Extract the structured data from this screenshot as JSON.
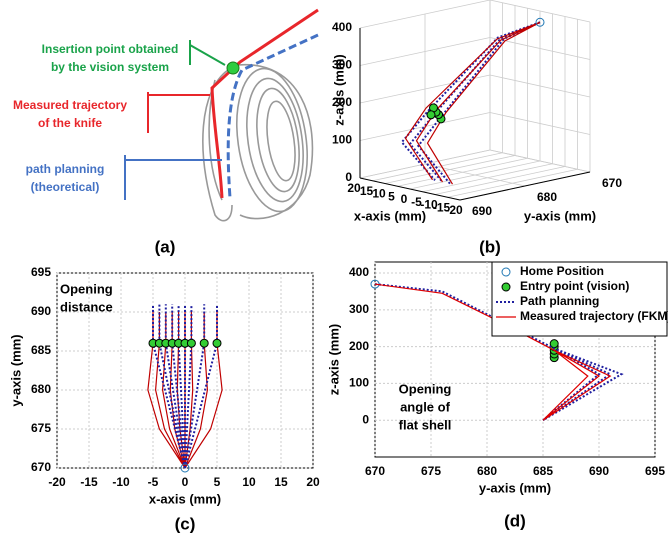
{
  "illustration": {
    "caption": "(a)",
    "labels": [
      {
        "lines": [
          "Insertion point obtained",
          "by the vision system"
        ]
      },
      {
        "lines": [
          "Measured trajectory",
          "of the knife"
        ]
      },
      {
        "lines": [
          "path planning",
          "(theoretical)"
        ]
      }
    ]
  },
  "chart_data": [
    {
      "type": "line3d",
      "caption": "(b)",
      "xlabel": "x-axis (mm)",
      "ylabel": "y-axis (mm)",
      "zlabel": "z-axis (mm)",
      "xlim": [
        -20,
        20
      ],
      "xticks": [
        20,
        15,
        10,
        5,
        0,
        -5,
        -10,
        -15,
        -20
      ],
      "ylim": [
        670,
        690
      ],
      "yticks": [
        690,
        680,
        670
      ],
      "zlim": [
        0,
        400
      ],
      "zticks": [
        0,
        100,
        200,
        300,
        400
      ],
      "grid": true,
      "series": [
        {
          "color": "#2020a0",
          "style": "dotted",
          "x": [
            0,
            -1.2,
            -3,
            -3.3,
            -3,
            null,
            0,
            0,
            0,
            0,
            0,
            null,
            0,
            1.2,
            3,
            3.3,
            3
          ],
          "y": [
            670,
            676,
            686,
            690,
            685,
            null,
            670,
            676,
            686,
            690,
            685,
            null,
            670,
            676,
            686,
            690,
            685
          ],
          "z": [
            370,
            350,
            190,
            120,
            0,
            null,
            370,
            350,
            190,
            120,
            0,
            null,
            370,
            350,
            190,
            120,
            0
          ]
        },
        {
          "color": "#c00000",
          "style": "line",
          "x": [
            0,
            -1.6,
            -4,
            -4.4,
            -4,
            null,
            0,
            0,
            0,
            0,
            0,
            null,
            0,
            1.6,
            4,
            4.4,
            4
          ],
          "y": [
            670,
            676,
            686,
            689,
            685,
            null,
            670,
            676,
            686,
            689,
            685,
            null,
            670,
            676,
            686,
            689,
            685
          ],
          "z": [
            370,
            345,
            195,
            125,
            0,
            null,
            370,
            345,
            195,
            125,
            0,
            null,
            370,
            345,
            195,
            125,
            0
          ]
        },
        {
          "color": "#1f77b4",
          "style": "marker",
          "facecolor": "none",
          "x": [
            0
          ],
          "y": [
            670
          ],
          "z": [
            370
          ]
        },
        {
          "color": "#000000",
          "style": "marker",
          "facecolor": "#33cc33",
          "x": [
            -2,
            -1,
            0,
            1,
            2
          ],
          "y": [
            686,
            686,
            686,
            686,
            686
          ],
          "z": [
            175,
            185,
            190,
            200,
            180
          ]
        }
      ]
    },
    {
      "type": "line",
      "caption": "(c)",
      "xlabel": "x-axis (mm)",
      "ylabel": "y-axis (mm)",
      "xlim": [
        -20,
        20
      ],
      "xticks": [
        -20,
        -15,
        -10,
        -5,
        0,
        5,
        10,
        15,
        20
      ],
      "ylim": [
        670,
        695
      ],
      "yticks": [
        670,
        675,
        680,
        685,
        690,
        695
      ],
      "grid": true,
      "annotation": [
        "Opening",
        "distance"
      ],
      "series": [
        {
          "color": "#c00000",
          "style": "line",
          "x": [
            0,
            -4,
            -5.8,
            -5,
            -5,
            null,
            0,
            -3.2,
            -4.6,
            -4,
            -4,
            null,
            0,
            -2.4,
            -3.5,
            -3,
            -3,
            null,
            0,
            -1.6,
            -2.3,
            -2,
            -2,
            null,
            0,
            -0.8,
            -1.2,
            -1,
            -1,
            null,
            0,
            0,
            0,
            0,
            0,
            null,
            0,
            0.8,
            1.2,
            1,
            1,
            null,
            0,
            2.4,
            3.5,
            3,
            3,
            null,
            0,
            4,
            5.8,
            5,
            5
          ],
          "values": [
            670,
            675,
            680,
            686,
            690,
            null,
            670,
            675,
            680,
            686,
            690,
            null,
            670,
            675,
            680,
            686,
            690,
            null,
            670,
            675,
            680,
            686,
            690,
            null,
            670,
            675,
            680,
            686,
            690,
            null,
            670,
            675,
            680,
            686,
            690,
            null,
            670,
            675,
            680,
            686,
            690,
            null,
            670,
            675,
            680,
            686,
            690,
            null,
            670,
            675,
            680,
            686,
            690
          ]
        },
        {
          "color": "#2020a0",
          "style": "dotted",
          "x": [
            0,
            -5,
            -5,
            null,
            0,
            -4,
            -4,
            null,
            0,
            -3,
            -3,
            null,
            0,
            -2,
            -2,
            null,
            0,
            -1,
            -1,
            null,
            0,
            0,
            0,
            null,
            0,
            1,
            1,
            null,
            0,
            3,
            3,
            null,
            0,
            5,
            5
          ],
          "values": [
            670,
            686,
            691,
            null,
            670,
            686,
            691,
            null,
            670,
            686,
            691,
            null,
            670,
            686,
            691,
            null,
            670,
            686,
            691,
            null,
            670,
            686,
            691,
            null,
            670,
            686,
            691,
            null,
            670,
            686,
            691,
            null,
            670,
            686,
            691
          ]
        },
        {
          "color": "#1f77b4",
          "style": "marker",
          "facecolor": "none",
          "x": [
            0
          ],
          "values": [
            670
          ]
        },
        {
          "color": "#000000",
          "style": "marker",
          "facecolor": "#33cc33",
          "x": [
            -5,
            -4,
            -3,
            -2,
            -1,
            0,
            1,
            3,
            5
          ],
          "values": [
            686,
            686,
            686,
            686,
            686,
            686,
            686,
            686,
            686
          ]
        }
      ]
    },
    {
      "type": "line",
      "caption": "(d)",
      "xlabel": "y-axis (mm)",
      "ylabel": "z-axis (mm)",
      "xlim": [
        670,
        695
      ],
      "xticks": [
        670,
        675,
        680,
        685,
        690,
        695
      ],
      "ylim": [
        -100,
        430
      ],
      "yticks": [
        0,
        100,
        200,
        300,
        400
      ],
      "grid": true,
      "legend": "upper right",
      "annotation": [
        "Opening",
        "angle of",
        "flat shell"
      ],
      "series": [
        {
          "name": "Home Position",
          "color": "#1f77b4",
          "style": "marker",
          "facecolor": "none",
          "x": [
            670
          ],
          "values": [
            370
          ]
        },
        {
          "name": "Entry point (vision)",
          "color": "#000000",
          "style": "marker",
          "facecolor": "#33cc33",
          "x": [
            686,
            686,
            686,
            686,
            686
          ],
          "values": [
            170,
            180,
            190,
            200,
            208
          ]
        },
        {
          "name": "Path planning",
          "color": "#2020a0",
          "style": "dotted",
          "x": [
            670,
            676,
            686,
            690,
            685,
            null,
            670,
            676,
            686,
            691,
            685,
            null,
            670,
            676,
            686,
            692,
            685
          ],
          "values": [
            370,
            350,
            195,
            125,
            0,
            null,
            370,
            350,
            195,
            125,
            0,
            null,
            370,
            350,
            195,
            125,
            0
          ]
        },
        {
          "name": "Measured trajectory (FKM)",
          "color": "#e00000",
          "style": "line",
          "x": [
            670,
            676,
            681,
            686,
            689,
            685,
            null,
            670,
            676,
            681,
            686,
            690,
            685,
            null,
            670,
            676,
            681,
            686,
            691,
            685
          ],
          "values": [
            370,
            345,
            270,
            190,
            120,
            0,
            null,
            370,
            345,
            270,
            190,
            120,
            0,
            null,
            370,
            345,
            270,
            190,
            120,
            0
          ]
        }
      ]
    }
  ]
}
